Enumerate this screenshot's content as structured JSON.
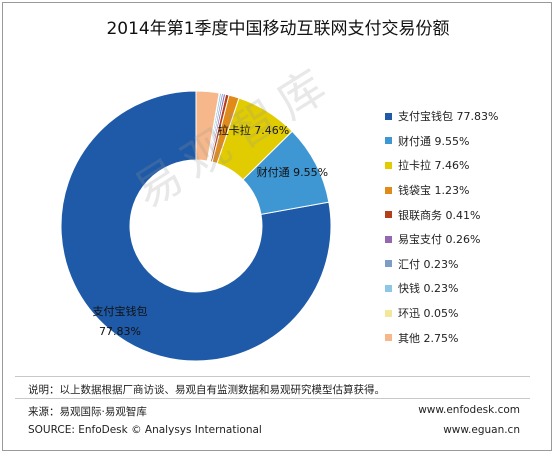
{
  "chart_data": {
    "type": "pie",
    "title": "2014年第1季度中国移动互联网支付交易份额",
    "series": [
      {
        "name": "支付宝钱包",
        "value": 77.83,
        "label": "77.83%",
        "color": "#1e5aa8"
      },
      {
        "name": "财付通",
        "value": 9.55,
        "label": "9.55%",
        "color": "#3e96d2"
      },
      {
        "name": "拉卡拉",
        "value": 7.46,
        "label": "7.46%",
        "color": "#e0cc00"
      },
      {
        "name": "钱袋宝",
        "value": 1.23,
        "label": "1.23%",
        "color": "#e08a1a"
      },
      {
        "name": "银联商务",
        "value": 0.41,
        "label": "0.41%",
        "color": "#b3401a"
      },
      {
        "name": "易宝支付",
        "value": 0.26,
        "label": "0.26%",
        "color": "#9468b0"
      },
      {
        "name": "汇付",
        "value": 0.23,
        "label": "0.23%",
        "color": "#7e9dc4"
      },
      {
        "name": "快钱",
        "value": 0.23,
        "label": "0.23%",
        "color": "#8ec6e8"
      },
      {
        "name": "环迅",
        "value": 0.05,
        "label": "0.05%",
        "color": "#f3e79a"
      },
      {
        "name": "其他",
        "value": 2.75,
        "label": "2.75%",
        "color": "#f6b88b"
      }
    ],
    "legend_position": "right",
    "data_labels": [
      {
        "series": "支付宝钱包",
        "text": "支付宝钱包",
        "text2": "77.83%"
      },
      {
        "series": "财付通",
        "text": "财付通 9.55%"
      },
      {
        "series": "拉卡拉",
        "text": "拉卡拉 7.46%"
      }
    ]
  },
  "watermark": "易观智库",
  "footer": {
    "note": "说明：以上数据根据厂商访谈、易观自有监测数据和易观研究模型估算获得。",
    "source_cn": "来源：易观国际·易观智库",
    "source_en": "SOURCE: EnfoDesk © Analysys International",
    "site1": "www.enfodesk.com",
    "site2": "www.eguan.cn"
  }
}
